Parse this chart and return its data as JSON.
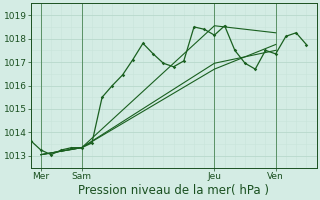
{
  "xlabel": "Pression niveau de la mer( hPa )",
  "background_color": "#d4ece4",
  "grid_color_major": "#b8d8cc",
  "grid_color_minor": "#c8e4da",
  "line_color": "#1a6020",
  "ylim": [
    1012.5,
    1019.5
  ],
  "xlim": [
    0,
    28
  ],
  "yticks": [
    1013,
    1014,
    1015,
    1016,
    1017,
    1018,
    1019
  ],
  "xtick_positions": [
    1,
    5,
    18,
    24
  ],
  "xtick_labels": [
    "Mer",
    "Sam",
    "Jeu",
    "Ven"
  ],
  "vline_positions": [
    1,
    5,
    18,
    24
  ],
  "series1_x": [
    0,
    1,
    2,
    3,
    4,
    5,
    6,
    7,
    8,
    9,
    10,
    11,
    12,
    13,
    14,
    15,
    16,
    17,
    18,
    19,
    20,
    21,
    22,
    23,
    24,
    25,
    26,
    27
  ],
  "series1_y": [
    1013.65,
    1013.25,
    1013.05,
    1013.25,
    1013.35,
    1013.35,
    1013.55,
    1015.5,
    1016.0,
    1016.45,
    1017.1,
    1017.8,
    1017.35,
    1016.95,
    1016.8,
    1017.05,
    1018.5,
    1018.4,
    1018.15,
    1018.55,
    1017.5,
    1016.95,
    1016.7,
    1017.5,
    1017.35,
    1018.1,
    1018.25,
    1017.75
  ],
  "series2_x": [
    1,
    5,
    18,
    24
  ],
  "series2_y": [
    1013.05,
    1013.35,
    1018.55,
    1018.25
  ],
  "series3_x": [
    1,
    5,
    18,
    24
  ],
  "series3_y": [
    1013.05,
    1013.35,
    1016.7,
    1017.75
  ],
  "series4_x": [
    1,
    5,
    18,
    24
  ],
  "series4_y": [
    1013.05,
    1013.35,
    1016.95,
    1017.5
  ],
  "font_color": "#1a5020",
  "tick_fontsize": 6.5,
  "label_fontsize": 8.5
}
